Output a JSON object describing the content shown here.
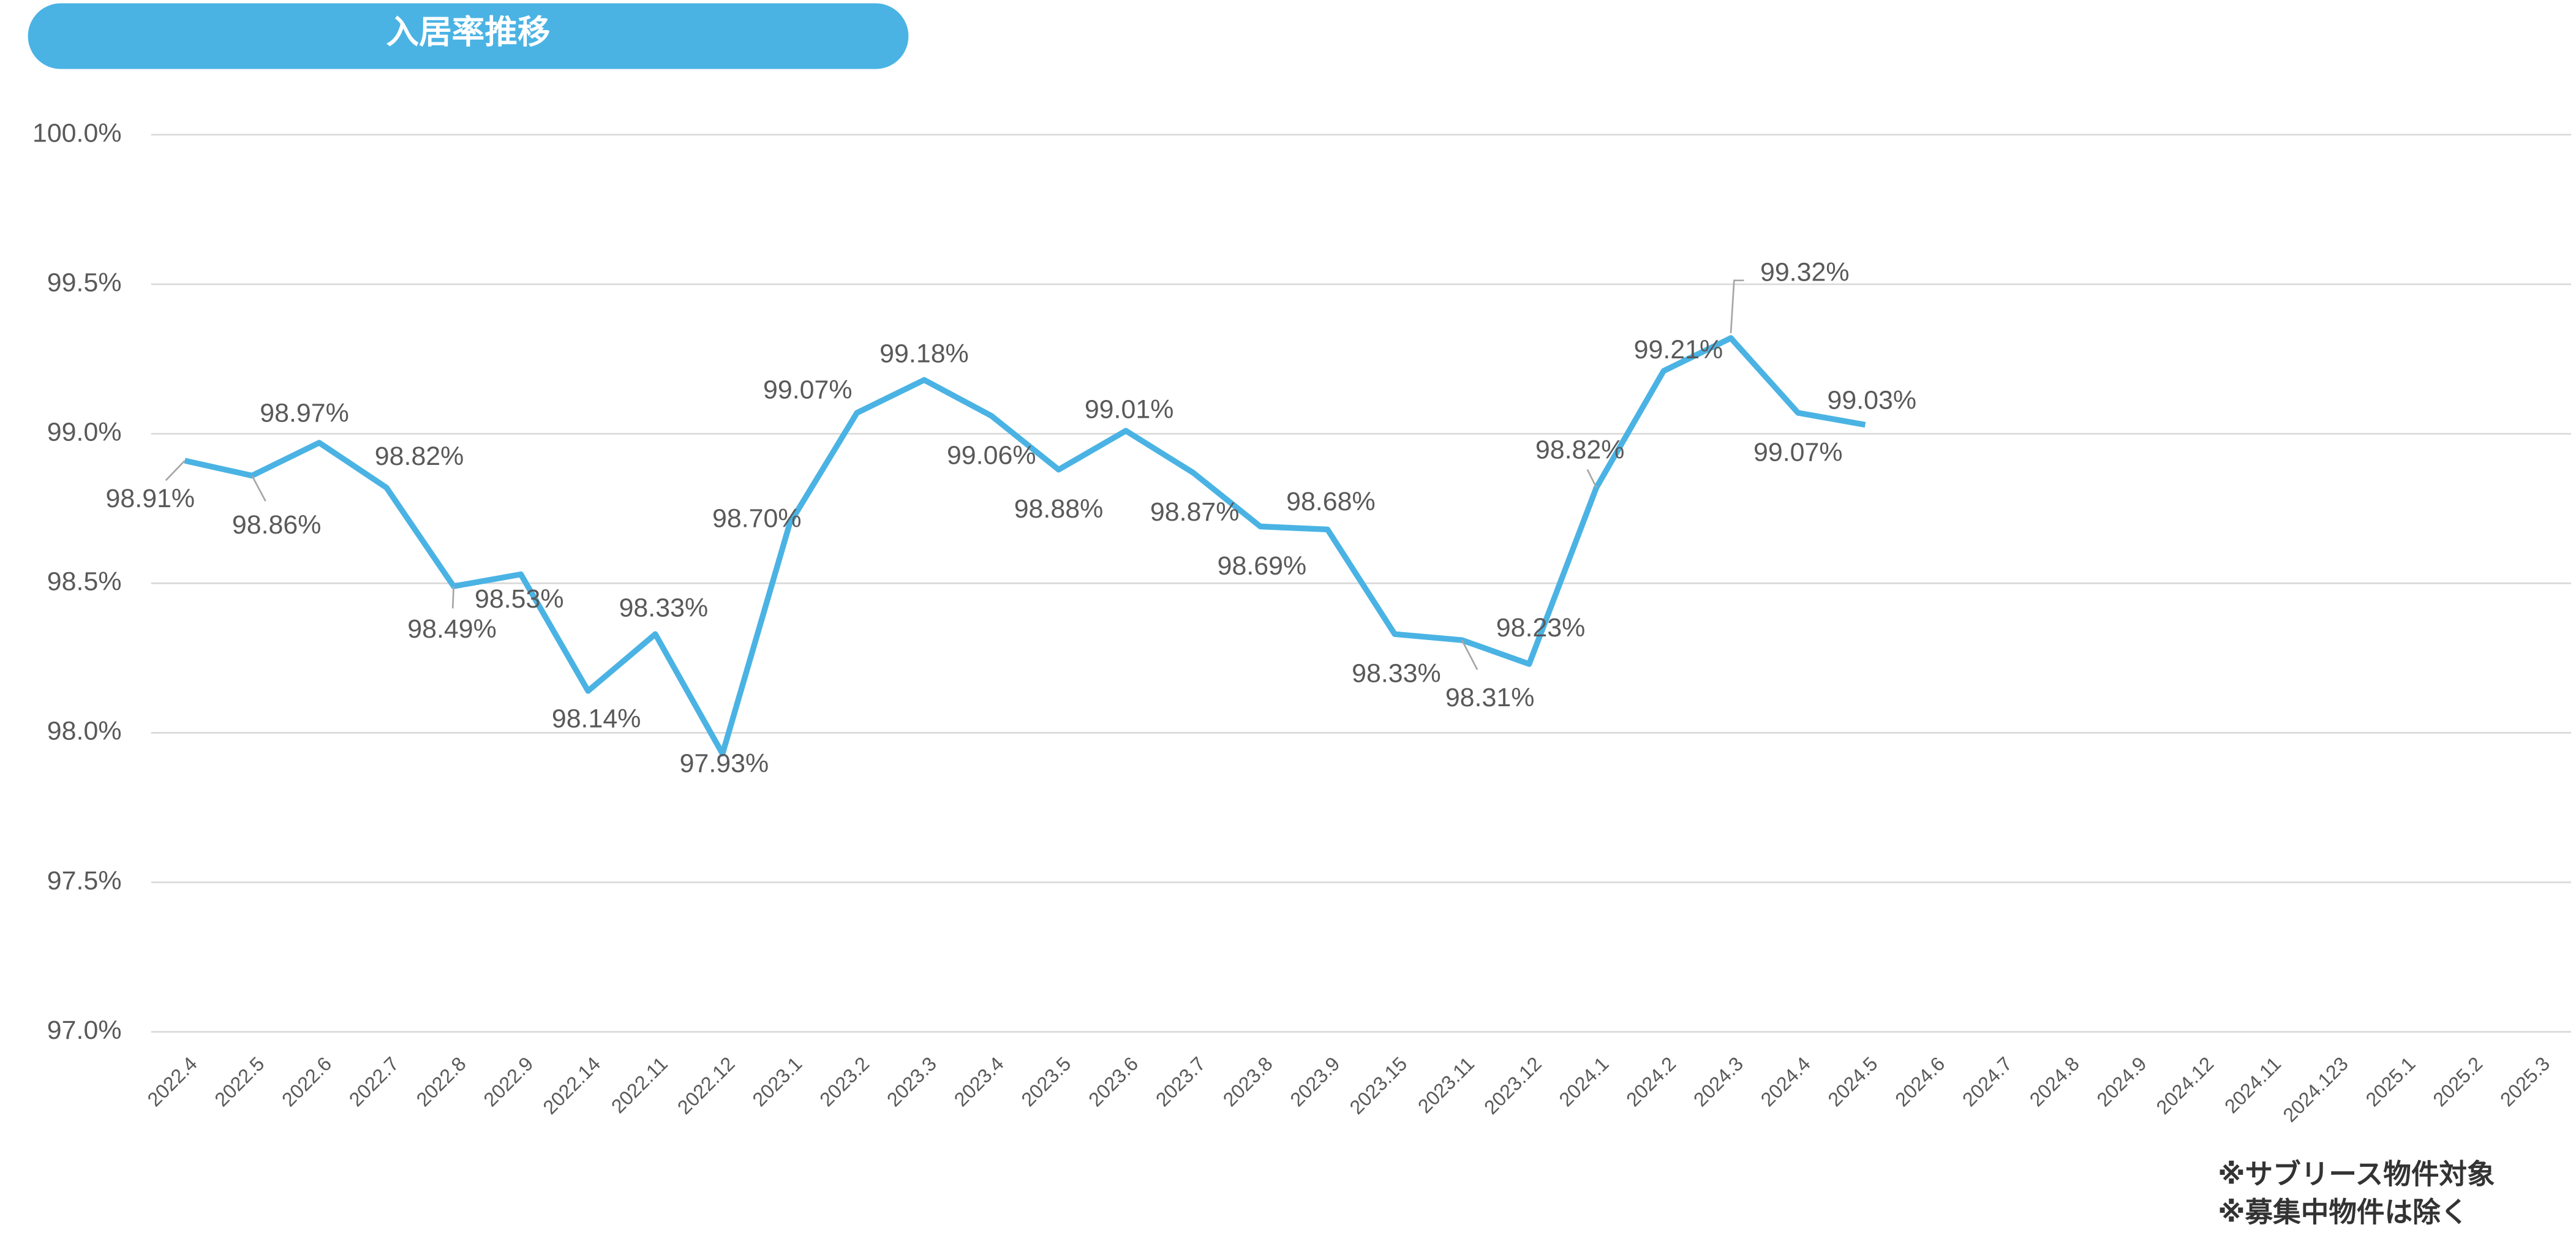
{
  "chart_data": {
    "type": "line",
    "title": "入居率推移",
    "categories": [
      "2022.4",
      "2022.5",
      "2022.6",
      "2022.7",
      "2022.8",
      "2022.9",
      "2022.14",
      "2022.11",
      "2022.12",
      "2023.1",
      "2023.2",
      "2023.3",
      "2023.4",
      "2023.5",
      "2023.6",
      "2023.7",
      "2023.8",
      "2023.9",
      "2023.15",
      "2023.11",
      "2023.12",
      "2024.1",
      "2024.2",
      "2024.3",
      "2024.4",
      "2024.5",
      "2024.6",
      "2024.7",
      "2024.8",
      "2024.9",
      "2024.12",
      "2024.11",
      "2024.123",
      "2025.1",
      "2025.2",
      "2025.3"
    ],
    "values": [
      98.91,
      98.86,
      98.97,
      98.82,
      98.49,
      98.53,
      98.14,
      98.33,
      97.93,
      98.7,
      99.07,
      99.18,
      99.06,
      98.88,
      99.01,
      98.87,
      98.69,
      98.68,
      98.33,
      98.31,
      98.23,
      98.82,
      99.21,
      99.32,
      99.07,
      99.03,
      null,
      null,
      null,
      null,
      null,
      null,
      null,
      null,
      null,
      null
    ],
    "value_labels": [
      "98.91%",
      "98.86%",
      "98.97%",
      "98.82%",
      "98.49%",
      "98.53%",
      "98.14%",
      "98.33%",
      "97.93%",
      "98.70%",
      "99.07%",
      "99.18%",
      "99.06%",
      "98.88%",
      "99.01%",
      "98.87%",
      "98.69%",
      "98.68%",
      "98.33%",
      "98.31%",
      "98.23%",
      "98.82%",
      "99.21%",
      "99.32%",
      "99.07%",
      "99.03%",
      null,
      null,
      null,
      null,
      null,
      null,
      null,
      null,
      null,
      null
    ],
    "color": "#4ab3e4",
    "ylim": [
      97,
      100
    ],
    "yticks": [
      {
        "value": 97,
        "label": "97.0%"
      },
      {
        "value": 97.5,
        "label": "97.5%"
      },
      {
        "value": 98,
        "label": "98.0%"
      },
      {
        "value": 98.5,
        "label": "98.5%"
      },
      {
        "value": 99,
        "label": "99.0%"
      },
      {
        "value": 99.5,
        "label": "99.5%"
      },
      {
        "value": 100,
        "label": "100.0%"
      }
    ],
    "grid": true,
    "notes": [
      "※サブリース物件対象",
      "※募集中物件は除く"
    ]
  }
}
